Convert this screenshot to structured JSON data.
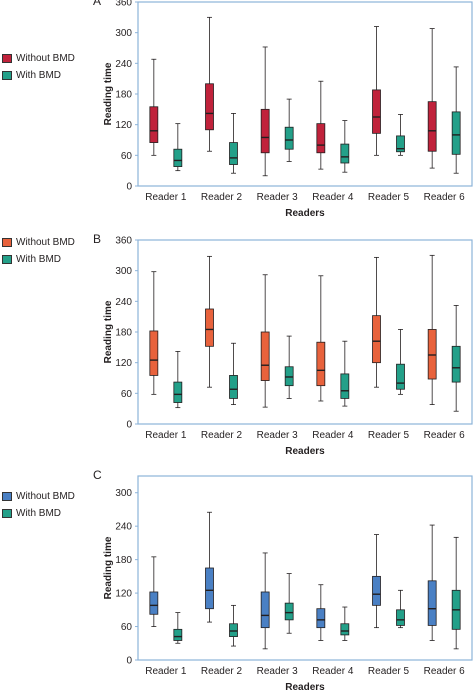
{
  "chart_data": [
    {
      "type": "boxplot",
      "panel_label": "A",
      "xlabel": "Readers",
      "ylabel": "Reading time",
      "ylim": [
        0,
        360
      ],
      "yticks": [
        0,
        60,
        120,
        180,
        240,
        300,
        360
      ],
      "grid": false,
      "legend_position": "left",
      "categories": [
        "Reader 1",
        "Reader 2",
        "Reader 3",
        "Reader 4",
        "Reader 5",
        "Reader 6"
      ],
      "series": [
        {
          "name": "Without BMD",
          "color": "#c0223b",
          "boxes": [
            {
              "min": 60,
              "q1": 85,
              "median": 108,
              "q3": 155,
              "max": 248
            },
            {
              "min": 68,
              "q1": 110,
              "median": 142,
              "q3": 200,
              "max": 330
            },
            {
              "min": 20,
              "q1": 65,
              "median": 95,
              "q3": 150,
              "max": 272
            },
            {
              "min": 33,
              "q1": 65,
              "median": 80,
              "q3": 122,
              "max": 205
            },
            {
              "min": 60,
              "q1": 103,
              "median": 135,
              "q3": 188,
              "max": 312
            },
            {
              "min": 35,
              "q1": 68,
              "median": 108,
              "q3": 165,
              "max": 308
            }
          ]
        },
        {
          "name": "With BMD",
          "color": "#23a089",
          "boxes": [
            {
              "min": 30,
              "q1": 38,
              "median": 50,
              "q3": 72,
              "max": 122
            },
            {
              "min": 25,
              "q1": 42,
              "median": 55,
              "q3": 85,
              "max": 142
            },
            {
              "min": 48,
              "q1": 72,
              "median": 90,
              "q3": 115,
              "max": 170
            },
            {
              "min": 27,
              "q1": 45,
              "median": 57,
              "q3": 82,
              "max": 128
            },
            {
              "min": 60,
              "q1": 67,
              "median": 73,
              "q3": 98,
              "max": 140
            },
            {
              "min": 25,
              "q1": 62,
              "median": 100,
              "q3": 145,
              "max": 233
            }
          ]
        }
      ]
    },
    {
      "type": "boxplot",
      "panel_label": "B",
      "xlabel": "Readers",
      "ylabel": "Reading time",
      "ylim": [
        0,
        360
      ],
      "yticks": [
        0,
        60,
        120,
        180,
        240,
        300,
        360
      ],
      "grid": false,
      "legend_position": "left",
      "categories": [
        "Reader 1",
        "Reader 2",
        "Reader 3",
        "Reader 4",
        "Reader 5",
        "Reader 6"
      ],
      "series": [
        {
          "name": "Without BMD",
          "color": "#e8623c",
          "boxes": [
            {
              "min": 58,
              "q1": 95,
              "median": 125,
              "q3": 182,
              "max": 298
            },
            {
              "min": 72,
              "q1": 152,
              "median": 185,
              "q3": 225,
              "max": 328
            },
            {
              "min": 33,
              "q1": 85,
              "median": 115,
              "q3": 180,
              "max": 292
            },
            {
              "min": 45,
              "q1": 75,
              "median": 105,
              "q3": 160,
              "max": 290
            },
            {
              "min": 72,
              "q1": 120,
              "median": 162,
              "q3": 212,
              "max": 326
            },
            {
              "min": 38,
              "q1": 88,
              "median": 135,
              "q3": 185,
              "max": 330
            }
          ]
        },
        {
          "name": "With BMD",
          "color": "#23a089",
          "boxes": [
            {
              "min": 32,
              "q1": 42,
              "median": 58,
              "q3": 82,
              "max": 142
            },
            {
              "min": 38,
              "q1": 50,
              "median": 68,
              "q3": 95,
              "max": 158
            },
            {
              "min": 50,
              "q1": 75,
              "median": 92,
              "q3": 112,
              "max": 172
            },
            {
              "min": 35,
              "q1": 50,
              "median": 65,
              "q3": 98,
              "max": 162
            },
            {
              "min": 58,
              "q1": 68,
              "median": 80,
              "q3": 117,
              "max": 185
            },
            {
              "min": 25,
              "q1": 82,
              "median": 110,
              "q3": 152,
              "max": 232
            }
          ]
        }
      ]
    },
    {
      "type": "boxplot",
      "panel_label": "C",
      "xlabel": "Readers",
      "ylabel": "Reading time",
      "ylim": [
        0,
        330
      ],
      "yticks": [
        0,
        60,
        120,
        180,
        240,
        300
      ],
      "grid": false,
      "legend_position": "left",
      "categories": [
        "Reader 1",
        "Reader 2",
        "Reader 3",
        "Reader 4",
        "Reader 5",
        "Reader 6"
      ],
      "series": [
        {
          "name": "Without BMD",
          "color": "#4a80c4",
          "boxes": [
            {
              "min": 60,
              "q1": 82,
              "median": 98,
              "q3": 122,
              "max": 185
            },
            {
              "min": 68,
              "q1": 92,
              "median": 125,
              "q3": 165,
              "max": 265
            },
            {
              "min": 20,
              "q1": 58,
              "median": 80,
              "q3": 122,
              "max": 192
            },
            {
              "min": 35,
              "q1": 58,
              "median": 72,
              "q3": 92,
              "max": 135
            },
            {
              "min": 58,
              "q1": 98,
              "median": 118,
              "q3": 150,
              "max": 225
            },
            {
              "min": 35,
              "q1": 62,
              "median": 92,
              "q3": 142,
              "max": 242
            }
          ]
        },
        {
          "name": "With BMD",
          "color": "#23a089",
          "boxes": [
            {
              "min": 30,
              "q1": 35,
              "median": 42,
              "q3": 55,
              "max": 85
            },
            {
              "min": 25,
              "q1": 42,
              "median": 52,
              "q3": 65,
              "max": 98
            },
            {
              "min": 48,
              "q1": 72,
              "median": 85,
              "q3": 102,
              "max": 155
            },
            {
              "min": 35,
              "q1": 45,
              "median": 52,
              "q3": 65,
              "max": 95
            },
            {
              "min": 58,
              "q1": 62,
              "median": 72,
              "q3": 90,
              "max": 125
            },
            {
              "min": 20,
              "q1": 55,
              "median": 90,
              "q3": 125,
              "max": 220
            }
          ]
        }
      ]
    }
  ]
}
